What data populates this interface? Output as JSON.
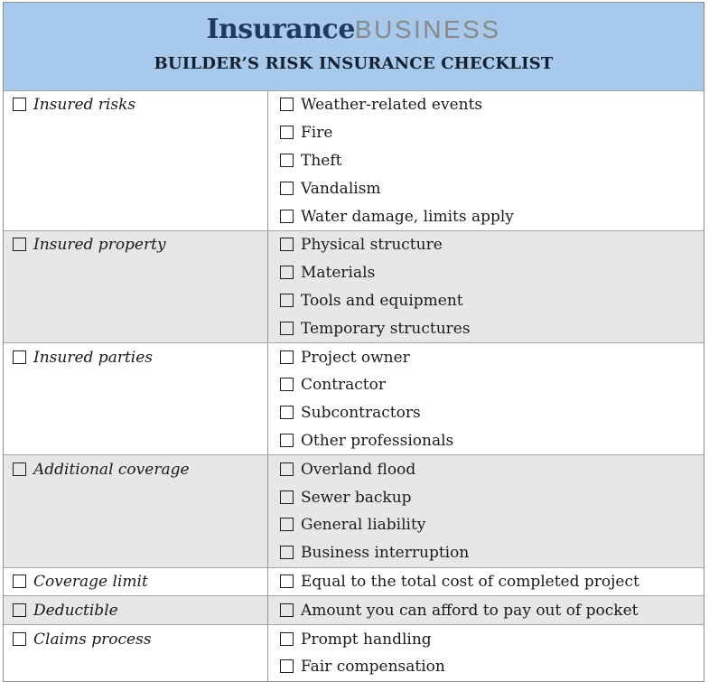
{
  "header": {
    "logo_part1": "Insurance",
    "logo_part2": "BUSINESS",
    "title": "BUILDER’S RISK INSURANCE CHECKLIST"
  },
  "colors": {
    "header_bg": "#a6c9ec",
    "logo_navy": "#1f3864",
    "logo_gray": "#8a8a8a",
    "title_text": "#14202e",
    "row_shaded_bg": "#e7e7e7",
    "row_white_bg": "#ffffff",
    "outer_border": "#8f8f8f",
    "inner_border": "#a3a3a3",
    "body_text": "#1a1a1a"
  },
  "icons": {
    "checkbox": "empty-checkbox-icon"
  },
  "rows": [
    {
      "category": "Insured risks",
      "shaded": false,
      "items": [
        "Weather-related events",
        "Fire",
        "Theft",
        "Vandalism",
        "Water damage, limits apply"
      ]
    },
    {
      "category": "Insured property",
      "shaded": true,
      "items": [
        "Physical structure",
        "Materials",
        "Tools and equipment",
        "Temporary structures"
      ]
    },
    {
      "category": "Insured parties",
      "shaded": false,
      "items": [
        "Project owner",
        "Contractor",
        "Subcontractors",
        "Other professionals"
      ]
    },
    {
      "category": "Additional coverage",
      "shaded": true,
      "items": [
        "Overland flood",
        "Sewer backup",
        "General liability",
        "Business interruption"
      ]
    },
    {
      "category": "Coverage limit",
      "shaded": false,
      "items": [
        "Equal to the total cost of completed project"
      ]
    },
    {
      "category": "Deductible",
      "shaded": true,
      "items": [
        "Amount you can afford to pay out of pocket"
      ]
    },
    {
      "category": "Claims process",
      "shaded": false,
      "items": [
        "Prompt handling",
        "Fair compensation"
      ]
    }
  ]
}
